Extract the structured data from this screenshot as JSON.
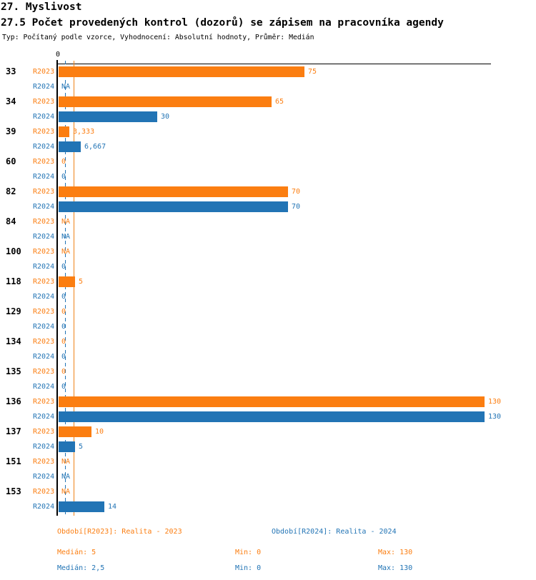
{
  "header": {
    "title": "27. Myslivost",
    "subtitle": "27.5 Počet provedených kontrol (dozorů) se zápisem na pracovníka agendy",
    "meta": "Typ: Počítaný podle vzorce, Vyhodnocení: Absolutní hodnoty, Průměr: Medián"
  },
  "colors": {
    "r2023": "#fb7e11",
    "r2024": "#2274b5",
    "axis": "#000000"
  },
  "chart_data": {
    "type": "bar",
    "orientation": "horizontal",
    "title": "27.5 Počet provedených kontrol (dozorů) se zápisem na pracovníka agendy",
    "categories": [
      "33",
      "34",
      "39",
      "60",
      "82",
      "84",
      "100",
      "118",
      "129",
      "134",
      "135",
      "136",
      "137",
      "151",
      "153"
    ],
    "series": [
      {
        "name": "R2023",
        "color": "#fb7e11",
        "values": [
          75,
          65,
          3.333,
          0,
          70,
          null,
          null,
          5,
          0,
          0,
          0,
          130,
          10,
          null,
          null
        ],
        "display": [
          "75",
          "65",
          "3,333",
          "0",
          "70",
          "NA",
          "NA",
          "5",
          "0",
          "0",
          "0",
          "130",
          "10",
          "NA",
          "NA"
        ],
        "median": 5,
        "min": 0,
        "max": 130
      },
      {
        "name": "R2024",
        "color": "#2274b5",
        "values": [
          null,
          30,
          6.667,
          0,
          70,
          null,
          0,
          0,
          0,
          0,
          0,
          130,
          5,
          null,
          14
        ],
        "display": [
          "NA",
          "30",
          "6,667",
          "0",
          "70",
          "NA",
          "0",
          "0",
          "0",
          "0",
          "0",
          "130",
          "5",
          "NA",
          "14"
        ],
        "median": 2.5,
        "min": 0,
        "max": 130
      }
    ],
    "x_axis": {
      "zero_label": "0",
      "min": 0,
      "visible_tick_values": [
        0
      ]
    },
    "reference_lines": [
      {
        "series": "R2023",
        "value": 5,
        "style": "solid",
        "color": "#ef8318"
      },
      {
        "series": "R2024",
        "value": 2.5,
        "style": "dashed",
        "color": "#2274b5"
      }
    ],
    "legend_position": "bottom"
  },
  "legend": {
    "r2023": "Období[R2023]: Realita - 2023",
    "r2024": "Období[R2024]: Realita - 2024"
  },
  "stats": {
    "r2023": {
      "median": "Medián: 5",
      "min": "Min: 0",
      "max": "Max: 130"
    },
    "r2024": {
      "median": "Medián: 2,5",
      "min": "Min: 0",
      "max": "Max: 130"
    }
  }
}
